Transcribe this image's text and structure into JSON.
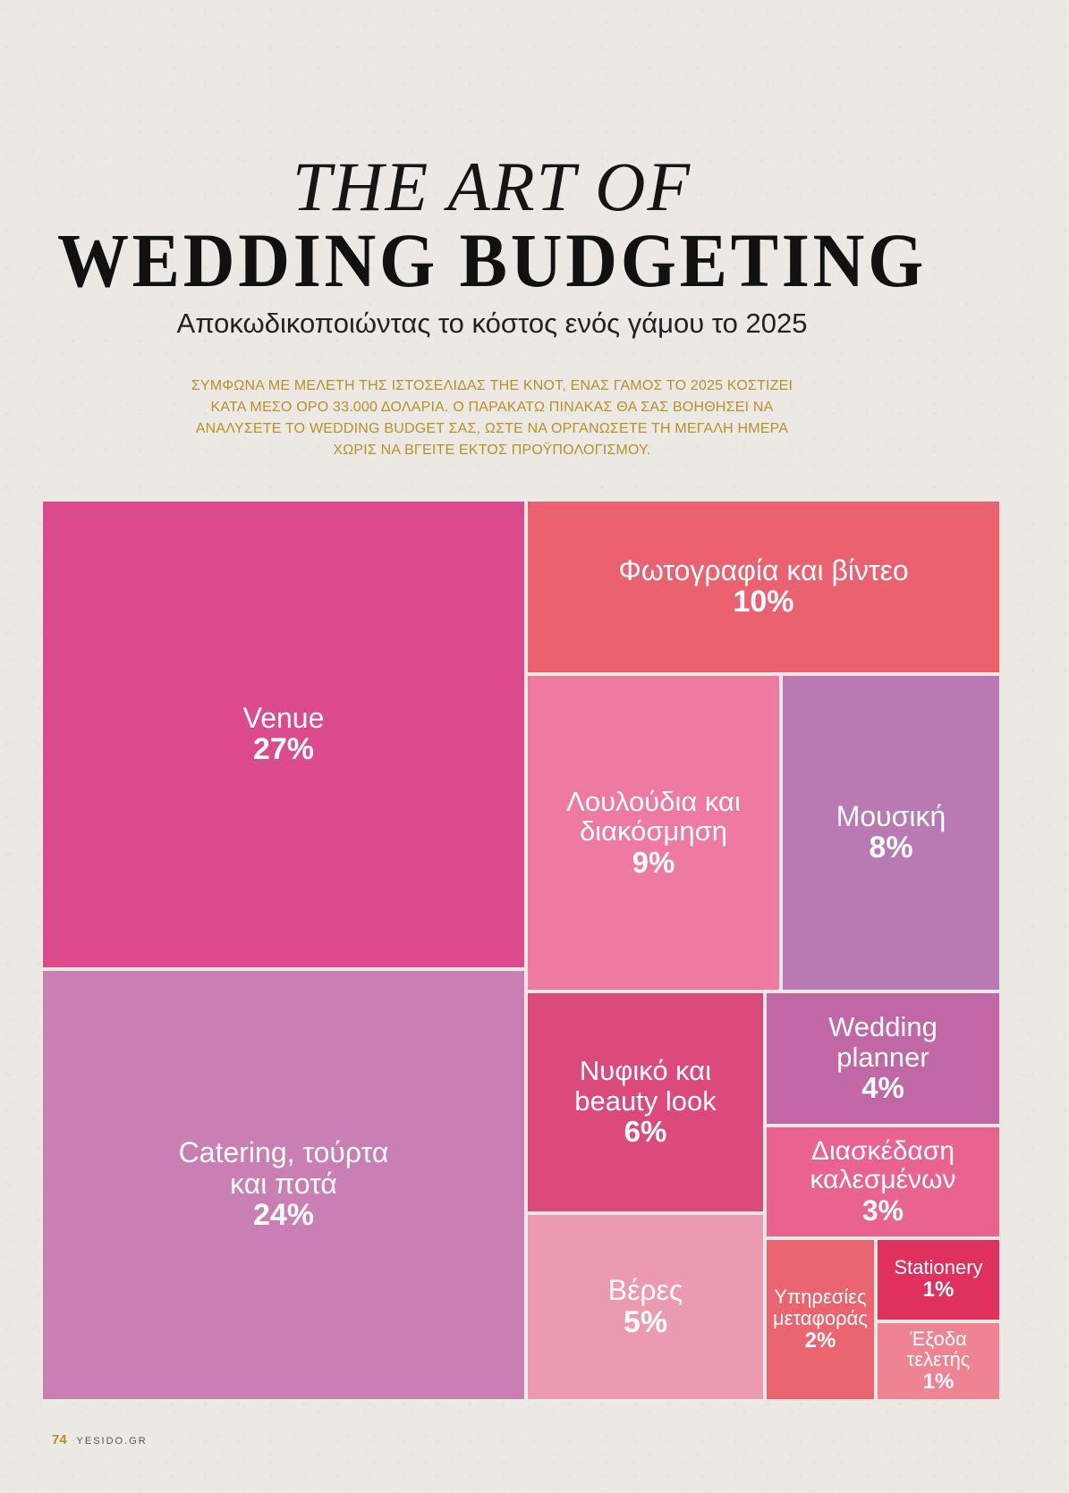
{
  "header": {
    "title_line1": "THE ART OF",
    "title_line2": "WEDDING BUDGETING",
    "subtitle": "Αποκωδικοποιώντας το κόστος ενός γάμου το 2025",
    "intro": "ΣΥΜΦΩΝΑ ΜΕ ΜΕΛΕΤΗ ΤΗΣ ΙΣΤΟΣΕΛΙΔΑΣ THE KNOT, ΕΝΑΣ ΓΑΜΟΣ ΤΟ 2025 ΚΟΣΤΙΖΕΙ ΚΑΤΑ ΜΕΣΟ ΟΡΟ 33.000 ΔΟΛΑΡΙΑ. Ο ΠΑΡΑΚΑΤΩ ΠΙΝΑΚΑΣ ΘΑ ΣΑΣ ΒΟΗΘΗΣΕΙ ΝΑ ΑΝΑΛΥΣΕΤΕ ΤΟ WEDDING BUDGET ΣΑΣ, ΩΣΤΕ ΝΑ ΟΡΓΑΝΩΣΕΤΕ ΤΗ ΜΕΓΑΛΗ ΗΜΕΡΑ ΧΩΡΙΣ ΝΑ ΒΓΕΙΤΕ ΕΚΤΟΣ ΠΡΟΫΠΟΛΟΓΙΣΜΟΥ."
  },
  "chart_data": {
    "type": "treemap",
    "title": "",
    "items": [
      {
        "key": "venue",
        "label": [
          "Venue"
        ],
        "percent_label": "27%",
        "value": 27,
        "color": "#db4a8c"
      },
      {
        "key": "catering",
        "label": [
          "Catering, τούρτα",
          "και ποτά"
        ],
        "percent_label": "24%",
        "value": 24,
        "color": "#c97eb4"
      },
      {
        "key": "photo",
        "label": [
          "Φωτογραφία και βίντεο"
        ],
        "percent_label": "10%",
        "value": 10,
        "color": "#ea6170"
      },
      {
        "key": "flowers",
        "label": [
          "Λουλούδια και",
          "διακόσμηση"
        ],
        "percent_label": "9%",
        "value": 9,
        "color": "#ee7aa2"
      },
      {
        "key": "music",
        "label": [
          "Μουσική"
        ],
        "percent_label": "8%",
        "value": 8,
        "color": "#b97ab4"
      },
      {
        "key": "bridal",
        "label": [
          "Νυφικό και",
          "beauty look"
        ],
        "percent_label": "6%",
        "value": 6,
        "color": "#db4a7a"
      },
      {
        "key": "rings",
        "label": [
          "Βέρες"
        ],
        "percent_label": "5%",
        "value": 5,
        "color": "#ec9ab0"
      },
      {
        "key": "planner",
        "label": [
          "Wedding",
          "planner"
        ],
        "percent_label": "4%",
        "value": 4,
        "color": "#c267a6"
      },
      {
        "key": "guests",
        "label": [
          "Διασκέδαση",
          "καλεσμένων"
        ],
        "percent_label": "3%",
        "value": 3,
        "color": "#ea6390"
      },
      {
        "key": "transport",
        "label": [
          "Υπηρεσίες",
          "μεταφοράς"
        ],
        "percent_label": "2%",
        "value": 2,
        "color": "#ea6570"
      },
      {
        "key": "stationery",
        "label": [
          "Stationery"
        ],
        "percent_label": "1%",
        "value": 1,
        "color": "#e0305e"
      },
      {
        "key": "exit",
        "label": [
          "Έξοδα",
          "τελετής"
        ],
        "percent_label": "1%",
        "value": 1,
        "color": "#ee8492"
      }
    ]
  },
  "footer": {
    "page_number": "74",
    "site": "YESIDO.GR"
  }
}
